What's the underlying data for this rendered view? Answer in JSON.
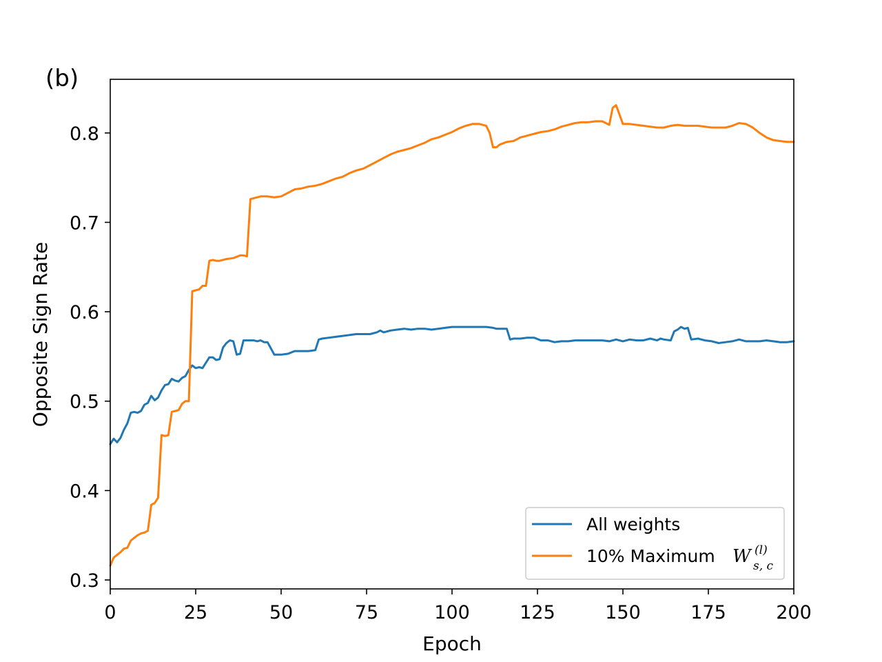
{
  "panel_label": "(b)",
  "colors": {
    "all_weights": "#1f77b4",
    "max_weights": "#ff7f0e",
    "axes": "#000000",
    "legend_border": "#cccccc"
  },
  "chart_data": {
    "type": "line",
    "title": "",
    "xlabel": "Epoch",
    "ylabel": "Opposite Sign Rate",
    "xlim": [
      0,
      200
    ],
    "ylim": [
      0.29,
      0.86
    ],
    "xticks": [
      0,
      25,
      50,
      75,
      100,
      125,
      150,
      175,
      200
    ],
    "xtick_labels": [
      "0",
      "25",
      "50",
      "75",
      "100",
      "125",
      "150",
      "175",
      "200"
    ],
    "yticks": [
      0.3,
      0.4,
      0.5,
      0.6,
      0.7,
      0.8
    ],
    "ytick_labels": [
      "0.3",
      "0.4",
      "0.5",
      "0.6",
      "0.7",
      "0.8"
    ],
    "grid": false,
    "legend_position": "lower-right",
    "series": [
      {
        "name": "All weights",
        "label_text": "All weights",
        "color": "#1f77b4",
        "x": [
          0,
          1,
          2,
          3,
          4,
          5,
          6,
          7,
          8,
          9,
          10,
          11,
          12,
          13,
          14,
          15,
          16,
          17,
          18,
          19,
          20,
          21,
          22,
          23,
          24,
          25,
          26,
          27,
          28,
          29,
          30,
          31,
          32,
          33,
          34,
          35,
          36,
          37,
          38,
          39,
          40,
          41,
          42,
          43,
          44,
          45,
          46,
          48,
          50,
          52,
          54,
          56,
          58,
          60,
          61,
          62,
          64,
          66,
          68,
          70,
          72,
          74,
          76,
          78,
          79,
          80,
          82,
          84,
          86,
          88,
          90,
          92,
          94,
          96,
          98,
          100,
          102,
          104,
          106,
          108,
          110,
          112,
          113,
          114,
          116,
          117,
          118,
          120,
          122,
          124,
          126,
          128,
          130,
          132,
          134,
          136,
          138,
          140,
          142,
          144,
          146,
          148,
          150,
          152,
          154,
          156,
          158,
          160,
          161,
          162,
          164,
          165,
          166,
          167,
          168,
          169,
          170,
          172,
          174,
          176,
          178,
          180,
          182,
          184,
          186,
          188,
          190,
          192,
          194,
          196,
          198,
          200
        ],
        "values": [
          0.452,
          0.458,
          0.454,
          0.459,
          0.468,
          0.475,
          0.487,
          0.488,
          0.487,
          0.489,
          0.496,
          0.498,
          0.506,
          0.501,
          0.504,
          0.512,
          0.518,
          0.519,
          0.525,
          0.523,
          0.522,
          0.526,
          0.528,
          0.535,
          0.54,
          0.537,
          0.538,
          0.537,
          0.543,
          0.549,
          0.549,
          0.546,
          0.547,
          0.56,
          0.565,
          0.568,
          0.567,
          0.552,
          0.553,
          0.568,
          0.568,
          0.568,
          0.568,
          0.567,
          0.568,
          0.566,
          0.566,
          0.552,
          0.552,
          0.553,
          0.556,
          0.556,
          0.556,
          0.557,
          0.569,
          0.57,
          0.571,
          0.572,
          0.573,
          0.574,
          0.575,
          0.575,
          0.575,
          0.577,
          0.579,
          0.577,
          0.579,
          0.58,
          0.581,
          0.58,
          0.581,
          0.581,
          0.58,
          0.581,
          0.582,
          0.583,
          0.583,
          0.583,
          0.583,
          0.583,
          0.583,
          0.582,
          0.581,
          0.581,
          0.581,
          0.569,
          0.57,
          0.57,
          0.571,
          0.571,
          0.568,
          0.568,
          0.566,
          0.567,
          0.567,
          0.568,
          0.568,
          0.568,
          0.568,
          0.568,
          0.567,
          0.569,
          0.567,
          0.569,
          0.568,
          0.568,
          0.57,
          0.568,
          0.57,
          0.569,
          0.568,
          0.578,
          0.58,
          0.583,
          0.581,
          0.582,
          0.569,
          0.57,
          0.568,
          0.567,
          0.565,
          0.566,
          0.567,
          0.569,
          0.567,
          0.567,
          0.567,
          0.568,
          0.567,
          0.566,
          0.566,
          0.567
        ]
      },
      {
        "name": "10% Maximum W_{s,c}^{(l)}",
        "label_prefix": "10% Maximum ",
        "label_math": "W",
        "label_sup": "(l)",
        "label_sub": "s, c",
        "color": "#ff7f0e",
        "x": [
          0,
          1,
          2,
          3,
          4,
          5,
          6,
          7,
          8,
          9,
          10,
          11,
          12,
          13,
          14,
          15,
          16,
          17,
          18,
          19,
          20,
          21,
          22,
          23,
          24,
          25,
          26,
          27,
          28,
          29,
          30,
          31,
          32,
          34,
          36,
          38,
          39,
          40,
          41,
          42,
          44,
          46,
          48,
          50,
          52,
          54,
          56,
          58,
          60,
          62,
          64,
          66,
          68,
          70,
          72,
          74,
          76,
          78,
          80,
          82,
          84,
          86,
          88,
          90,
          92,
          94,
          96,
          98,
          100,
          102,
          104,
          106,
          108,
          110,
          111,
          112,
          113,
          114,
          116,
          118,
          120,
          122,
          124,
          126,
          128,
          130,
          132,
          134,
          136,
          138,
          140,
          142,
          144,
          146,
          147,
          148,
          150,
          152,
          154,
          156,
          158,
          160,
          162,
          164,
          166,
          168,
          170,
          172,
          174,
          176,
          178,
          180,
          182,
          184,
          186,
          188,
          190,
          192,
          194,
          196,
          198,
          200
        ],
        "values": [
          0.316,
          0.325,
          0.328,
          0.331,
          0.335,
          0.336,
          0.344,
          0.347,
          0.35,
          0.352,
          0.353,
          0.355,
          0.384,
          0.386,
          0.392,
          0.462,
          0.461,
          0.462,
          0.488,
          0.489,
          0.49,
          0.497,
          0.5,
          0.5,
          0.623,
          0.624,
          0.625,
          0.629,
          0.629,
          0.657,
          0.658,
          0.657,
          0.657,
          0.659,
          0.66,
          0.663,
          0.663,
          0.662,
          0.726,
          0.727,
          0.729,
          0.729,
          0.728,
          0.729,
          0.733,
          0.737,
          0.738,
          0.74,
          0.741,
          0.743,
          0.746,
          0.749,
          0.751,
          0.755,
          0.758,
          0.76,
          0.764,
          0.768,
          0.772,
          0.776,
          0.779,
          0.781,
          0.783,
          0.786,
          0.789,
          0.793,
          0.795,
          0.798,
          0.801,
          0.805,
          0.808,
          0.81,
          0.81,
          0.808,
          0.8,
          0.784,
          0.784,
          0.787,
          0.79,
          0.791,
          0.795,
          0.797,
          0.799,
          0.801,
          0.802,
          0.804,
          0.807,
          0.809,
          0.811,
          0.812,
          0.812,
          0.813,
          0.813,
          0.809,
          0.828,
          0.831,
          0.81,
          0.81,
          0.809,
          0.808,
          0.807,
          0.806,
          0.806,
          0.808,
          0.809,
          0.808,
          0.808,
          0.808,
          0.807,
          0.806,
          0.806,
          0.806,
          0.808,
          0.811,
          0.81,
          0.806,
          0.8,
          0.795,
          0.792,
          0.791,
          0.79,
          0.79
        ]
      }
    ]
  }
}
